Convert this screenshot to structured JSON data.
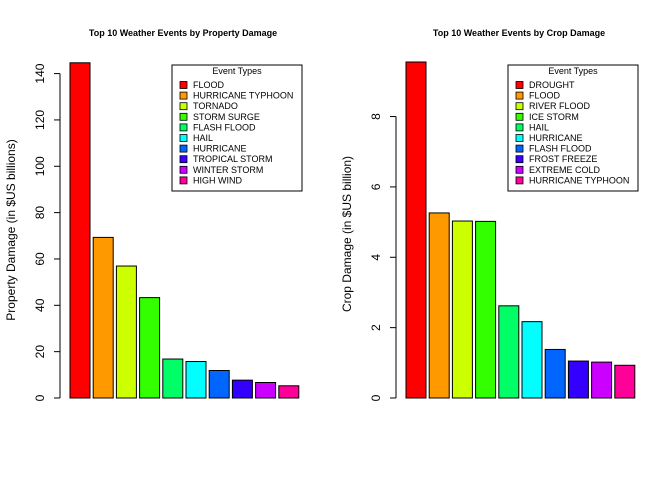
{
  "chart_data": [
    {
      "type": "bar",
      "title": "Top 10 Weather Events by Property Damage",
      "xlabel": "",
      "ylabel": "Property Damage (in  $US billions)",
      "ylim": [
        0,
        145
      ],
      "yticks": [
        0,
        20,
        40,
        60,
        80,
        100,
        120,
        140
      ],
      "categories": [
        "FLOOD",
        "HURRICANE TYPHOON",
        "TORNADO",
        "STORM SURGE",
        "FLASH FLOOD",
        "HAIL",
        "HURRICANE",
        "TROPICAL STORM",
        "WINTER STORM",
        "HIGH WIND"
      ],
      "values": [
        144.66,
        69.31,
        56.95,
        43.32,
        16.82,
        15.74,
        11.87,
        7.7,
        6.69,
        5.27
      ],
      "colors": [
        "#FF0000",
        "#FF9900",
        "#CCFF00",
        "#33FF00",
        "#00FF66",
        "#00FFFF",
        "#0066FF",
        "#3300FF",
        "#CC00FF",
        "#FF0099"
      ],
      "legend": {
        "title": "Event Types",
        "placement": "top-right"
      },
      "grid": false
    },
    {
      "type": "bar",
      "title": "Top 10 Weather Events by Crop Damage",
      "xlabel": "",
      "ylabel": "Crop Damage (in $US billion)",
      "ylim": [
        0,
        9.55
      ],
      "yticks": [
        0,
        2,
        4,
        6,
        8
      ],
      "categories": [
        "DROUGHT",
        "FLOOD",
        "RIVER FLOOD",
        "ICE STORM",
        "HAIL",
        "HURRICANE",
        "FLASH FLOOD",
        "FROST FREEZE",
        "EXTREME COLD",
        "HURRICANE TYPHOON"
      ],
      "values": [
        9.55,
        5.26,
        5.03,
        5.02,
        2.62,
        2.17,
        1.38,
        1.05,
        1.02,
        0.93
      ],
      "colors": [
        "#FF0000",
        "#FF9900",
        "#CCFF00",
        "#33FF00",
        "#00FF66",
        "#00FFFF",
        "#0066FF",
        "#3300FF",
        "#CC00FF",
        "#FF0099"
      ],
      "legend": {
        "title": "Event Types",
        "placement": "top-right"
      },
      "grid": false
    }
  ]
}
